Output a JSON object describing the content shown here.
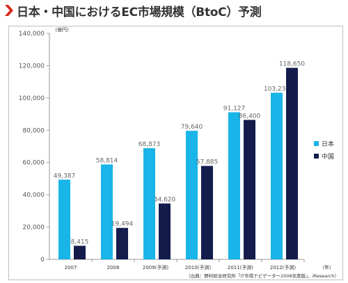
{
  "title": "日本・中国におけるEC市場規模（BtoC）予測",
  "colors": {
    "japan": "#19b4e8",
    "china": "#141c4c",
    "chevron": "#d9261c"
  },
  "chart_data": {
    "type": "bar",
    "ylabel": "（億円）",
    "xlabel": "（年）",
    "ylim": [
      0,
      140000
    ],
    "yticks": [
      "0",
      "20,000",
      "40,000",
      "60,000",
      "80,000",
      "100,000",
      "120,000",
      "140,000"
    ],
    "categories": [
      "2007",
      "2008",
      "2009(予測)",
      "2010(予測)",
      "2011(予測)",
      "2012(予測)"
    ],
    "series": [
      {
        "name": "日本",
        "values": [
          49387,
          58814,
          68873,
          79640,
          91127,
          103234
        ],
        "labels": [
          "49,387",
          "58,814",
          "68,873",
          "79,640",
          "91,127",
          "103,234"
        ]
      },
      {
        "name": "中国",
        "values": [
          8415,
          19494,
          34620,
          57885,
          86400,
          118650
        ],
        "labels": [
          "8,415",
          "19,494",
          "34,620",
          "57,885",
          "86,400",
          "118,650"
        ]
      }
    ],
    "legend_position": "right",
    "grid": false
  },
  "source": "（出典：野村総合研究所「IT市場ナビゲーター2008年度版」、iResearch）"
}
